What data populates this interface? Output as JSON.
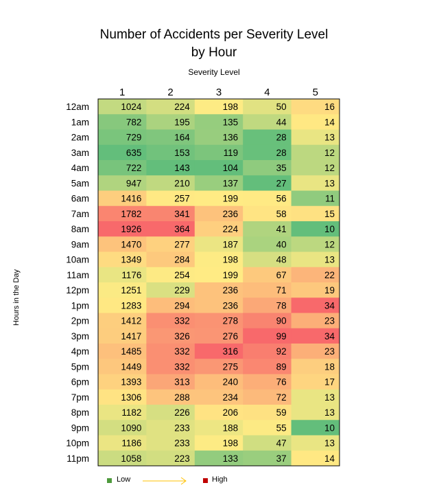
{
  "chart_data": {
    "type": "heatmap",
    "title": [
      "Number of Accidents per Severity Level",
      "by Hour"
    ],
    "xlabel": "Severity Level",
    "ylabel": "Hours in the Day",
    "columns": [
      "1",
      "2",
      "3",
      "4",
      "5"
    ],
    "rows": [
      "12am",
      "1am",
      "2am",
      "3am",
      "4am",
      "5am",
      "6am",
      "7am",
      "8am",
      "9am",
      "10am",
      "11am",
      "12pm",
      "1pm",
      "2pm",
      "3pm",
      "4pm",
      "5pm",
      "6pm",
      "7pm",
      "8pm",
      "9pm",
      "10pm",
      "11pm"
    ],
    "values": [
      [
        1024,
        224,
        198,
        50,
        16
      ],
      [
        782,
        195,
        135,
        44,
        14
      ],
      [
        729,
        164,
        136,
        28,
        13
      ],
      [
        635,
        153,
        119,
        28,
        12
      ],
      [
        722,
        143,
        104,
        35,
        12
      ],
      [
        947,
        210,
        137,
        27,
        13
      ],
      [
        1416,
        257,
        199,
        56,
        11
      ],
      [
        1782,
        341,
        236,
        58,
        15
      ],
      [
        1926,
        364,
        224,
        41,
        10
      ],
      [
        1470,
        277,
        187,
        40,
        12
      ],
      [
        1349,
        284,
        198,
        48,
        13
      ],
      [
        1176,
        254,
        199,
        67,
        22
      ],
      [
        1251,
        229,
        236,
        71,
        19
      ],
      [
        1283,
        294,
        236,
        78,
        34
      ],
      [
        1412,
        332,
        278,
        90,
        23
      ],
      [
        1417,
        326,
        276,
        99,
        34
      ],
      [
        1485,
        332,
        316,
        92,
        23
      ],
      [
        1449,
        332,
        275,
        89,
        18
      ],
      [
        1393,
        313,
        240,
        76,
        17
      ],
      [
        1306,
        288,
        234,
        72,
        13
      ],
      [
        1182,
        226,
        206,
        59,
        13
      ],
      [
        1090,
        233,
        188,
        55,
        10
      ],
      [
        1186,
        233,
        198,
        47,
        13
      ],
      [
        1058,
        223,
        133,
        37,
        14
      ]
    ],
    "color_scale": {
      "low": "#63be7b",
      "mid": "#ffeb84",
      "high": "#f8696b"
    },
    "legend": {
      "low_label": "Low",
      "high_label": "High",
      "low_color": "#4e9a3c",
      "high_color": "#c00000",
      "arrow_color": "#ffc000"
    }
  }
}
